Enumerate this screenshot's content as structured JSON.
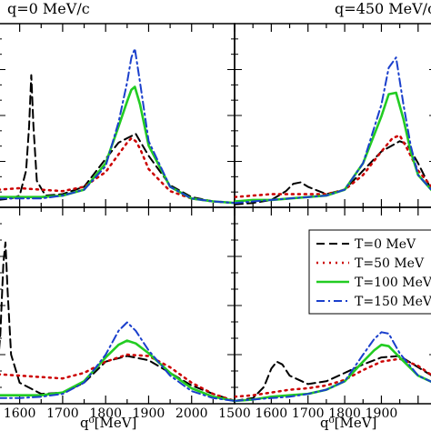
{
  "chart_data": [
    {
      "type": "line",
      "panel": "top-left",
      "title": "q=0 MeV/c",
      "xlabel": "",
      "xlim": [
        1550,
        2100
      ],
      "series": [
        {
          "name": "T=0 MeV",
          "color": "#000000",
          "dash": "dash",
          "x": [
            1550,
            1580,
            1600,
            1615,
            1622,
            1627,
            1632,
            1640,
            1660,
            1700,
            1750,
            1800,
            1830,
            1850,
            1870,
            1880,
            1900,
            1950,
            2000,
            2050,
            2100
          ],
          "y": [
            0.05,
            0.06,
            0.08,
            0.25,
            0.55,
            0.9,
            0.55,
            0.18,
            0.08,
            0.09,
            0.14,
            0.33,
            0.44,
            0.47,
            0.5,
            0.45,
            0.35,
            0.15,
            0.07,
            0.04,
            0.03
          ]
        },
        {
          "name": "T=50 MeV",
          "color": "#cc0000",
          "dash": "dot",
          "x": [
            1550,
            1600,
            1650,
            1700,
            1750,
            1800,
            1830,
            1850,
            1860,
            1870,
            1880,
            1900,
            1950,
            2000,
            2050,
            2100
          ],
          "y": [
            0.12,
            0.13,
            0.12,
            0.11,
            0.14,
            0.24,
            0.36,
            0.44,
            0.47,
            0.45,
            0.4,
            0.26,
            0.11,
            0.06,
            0.04,
            0.03
          ]
        },
        {
          "name": "T=100 MeV",
          "color": "#22cc22",
          "dash": "solid",
          "x": [
            1550,
            1600,
            1650,
            1700,
            1750,
            1800,
            1830,
            1850,
            1860,
            1868,
            1880,
            1900,
            1950,
            2000,
            2050,
            2100
          ],
          "y": [
            0.07,
            0.07,
            0.07,
            0.08,
            0.12,
            0.3,
            0.55,
            0.72,
            0.8,
            0.82,
            0.7,
            0.42,
            0.14,
            0.06,
            0.04,
            0.03
          ]
        },
        {
          "name": "T=150 MeV",
          "color": "#1a3fcc",
          "dash": "dashdot",
          "x": [
            1550,
            1600,
            1650,
            1700,
            1750,
            1800,
            1830,
            1850,
            1860,
            1868,
            1880,
            1900,
            1950,
            2000,
            2050,
            2100
          ],
          "y": [
            0.06,
            0.06,
            0.06,
            0.08,
            0.12,
            0.28,
            0.58,
            0.85,
            1.02,
            1.08,
            0.85,
            0.45,
            0.14,
            0.06,
            0.04,
            0.03
          ]
        }
      ]
    },
    {
      "type": "line",
      "panel": "top-right",
      "title": "q=450 MeV/c",
      "xlabel": "",
      "xlim": [
        1500,
        2050
      ],
      "series": [
        {
          "name": "T=0 MeV",
          "color": "#000000",
          "dash": "dash",
          "x": [
            1500,
            1550,
            1600,
            1640,
            1660,
            1680,
            1700,
            1750,
            1800,
            1850,
            1900,
            1950,
            1970,
            2000,
            2030,
            2050
          ],
          "y": [
            0.02,
            0.03,
            0.05,
            0.11,
            0.16,
            0.17,
            0.14,
            0.09,
            0.12,
            0.25,
            0.38,
            0.45,
            0.43,
            0.3,
            0.15,
            0.1
          ]
        },
        {
          "name": "T=50 MeV",
          "color": "#cc0000",
          "dash": "dot",
          "x": [
            1500,
            1550,
            1600,
            1650,
            1700,
            1750,
            1800,
            1850,
            1900,
            1930,
            1950,
            1970,
            2000,
            2050
          ],
          "y": [
            0.07,
            0.08,
            0.09,
            0.09,
            0.09,
            0.09,
            0.12,
            0.22,
            0.38,
            0.47,
            0.49,
            0.4,
            0.25,
            0.1
          ]
        },
        {
          "name": "T=100 MeV",
          "color": "#22cc22",
          "dash": "solid",
          "x": [
            1500,
            1550,
            1600,
            1650,
            1700,
            1750,
            1800,
            1850,
            1900,
            1920,
            1940,
            1960,
            1980,
            2000,
            2050
          ],
          "y": [
            0.04,
            0.05,
            0.05,
            0.06,
            0.07,
            0.08,
            0.12,
            0.3,
            0.62,
            0.77,
            0.78,
            0.6,
            0.38,
            0.22,
            0.08
          ]
        },
        {
          "name": "T=150 MeV",
          "color": "#1a3fcc",
          "dash": "dashdot",
          "x": [
            1500,
            1550,
            1600,
            1650,
            1700,
            1750,
            1800,
            1850,
            1900,
            1920,
            1940,
            1960,
            1980,
            2000,
            2050
          ],
          "y": [
            0.03,
            0.04,
            0.05,
            0.06,
            0.07,
            0.08,
            0.12,
            0.3,
            0.7,
            0.95,
            1.02,
            0.7,
            0.42,
            0.22,
            0.08
          ]
        }
      ]
    },
    {
      "type": "line",
      "panel": "bottom-left",
      "title": "",
      "xlabel": "q⁰[MeV]",
      "xlim": [
        1550,
        2100
      ],
      "xticks": [
        "1600",
        "1700",
        "1800",
        "1900",
        "2000"
      ],
      "series": [
        {
          "name": "T=0 MeV",
          "color": "#000000",
          "dash": "dash",
          "x": [
            1550,
            1555,
            1562,
            1567,
            1572,
            1580,
            1600,
            1650,
            1700,
            1750,
            1800,
            1850,
            1900,
            1950,
            2000,
            2050,
            2100
          ],
          "y": [
            0.3,
            0.5,
            1.0,
            1.15,
            0.8,
            0.35,
            0.15,
            0.07,
            0.08,
            0.15,
            0.3,
            0.34,
            0.31,
            0.22,
            0.13,
            0.07,
            0.02
          ]
        },
        {
          "name": "T=50 MeV",
          "color": "#cc0000",
          "dash": "dot",
          "x": [
            1550,
            1600,
            1650,
            1700,
            1750,
            1800,
            1850,
            1900,
            1950,
            2000,
            2050,
            2100
          ],
          "y": [
            0.21,
            0.2,
            0.19,
            0.18,
            0.22,
            0.3,
            0.35,
            0.34,
            0.26,
            0.15,
            0.07,
            0.02
          ]
        },
        {
          "name": "T=100 MeV",
          "color": "#22cc22",
          "dash": "solid",
          "x": [
            1550,
            1600,
            1650,
            1700,
            1750,
            1800,
            1830,
            1850,
            1870,
            1900,
            1950,
            2000,
            2050,
            2100
          ],
          "y": [
            0.06,
            0.06,
            0.06,
            0.08,
            0.16,
            0.33,
            0.42,
            0.45,
            0.43,
            0.36,
            0.22,
            0.11,
            0.05,
            0.02
          ]
        },
        {
          "name": "T=150 MeV",
          "color": "#1a3fcc",
          "dash": "dashdot",
          "x": [
            1550,
            1600,
            1650,
            1700,
            1750,
            1800,
            1830,
            1850,
            1870,
            1900,
            1950,
            2000,
            2050,
            2100
          ],
          "y": [
            0.04,
            0.04,
            0.05,
            0.07,
            0.15,
            0.35,
            0.52,
            0.58,
            0.52,
            0.38,
            0.2,
            0.09,
            0.04,
            0.02
          ]
        }
      ]
    },
    {
      "type": "line",
      "panel": "bottom-right",
      "title": "",
      "xlabel": "q⁰[MeV]",
      "xlim": [
        1500,
        2050
      ],
      "xticks": [
        "1500",
        "1600",
        "1700",
        "1800",
        "1900"
      ],
      "series": [
        {
          "name": "T=0 MeV",
          "color": "#000000",
          "dash": "dash",
          "x": [
            1500,
            1550,
            1580,
            1600,
            1615,
            1630,
            1650,
            1700,
            1750,
            1800,
            1850,
            1900,
            1950,
            2000,
            2050
          ],
          "y": [
            0.02,
            0.04,
            0.12,
            0.25,
            0.3,
            0.28,
            0.2,
            0.14,
            0.16,
            0.22,
            0.28,
            0.33,
            0.34,
            0.26,
            0.18
          ]
        },
        {
          "name": "T=50 MeV",
          "color": "#cc0000",
          "dash": "dot",
          "x": [
            1500,
            1550,
            1600,
            1650,
            1700,
            1750,
            1800,
            1850,
            1900,
            1950,
            2000,
            2050
          ],
          "y": [
            0.05,
            0.06,
            0.08,
            0.1,
            0.11,
            0.13,
            0.17,
            0.24,
            0.3,
            0.32,
            0.27,
            0.18
          ]
        },
        {
          "name": "T=100 MeV",
          "color": "#22cc22",
          "dash": "solid",
          "x": [
            1500,
            1550,
            1600,
            1650,
            1700,
            1750,
            1800,
            1850,
            1880,
            1900,
            1920,
            1950,
            2000,
            2050
          ],
          "y": [
            0.02,
            0.03,
            0.05,
            0.06,
            0.07,
            0.1,
            0.16,
            0.3,
            0.38,
            0.42,
            0.41,
            0.33,
            0.2,
            0.14
          ]
        },
        {
          "name": "T=150 MeV",
          "color": "#1a3fcc",
          "dash": "dashdot",
          "x": [
            1500,
            1550,
            1600,
            1650,
            1700,
            1750,
            1800,
            1850,
            1880,
            1900,
            1920,
            1950,
            2000,
            2050
          ],
          "y": [
            0.02,
            0.03,
            0.04,
            0.05,
            0.07,
            0.1,
            0.16,
            0.35,
            0.46,
            0.51,
            0.5,
            0.36,
            0.2,
            0.14
          ]
        }
      ]
    }
  ],
  "legend": {
    "items": [
      {
        "label": "T=0 MeV",
        "color": "#000000",
        "dash": "dash"
      },
      {
        "label": "T=50 MeV",
        "color": "#cc0000",
        "dash": "dot"
      },
      {
        "label": "T=100 MeV",
        "color": "#22cc22",
        "dash": "solid"
      },
      {
        "label": "T=150 MeV",
        "color": "#1a3fcc",
        "dash": "dashdot"
      }
    ],
    "placement": "bottom-right panel, top-right"
  }
}
